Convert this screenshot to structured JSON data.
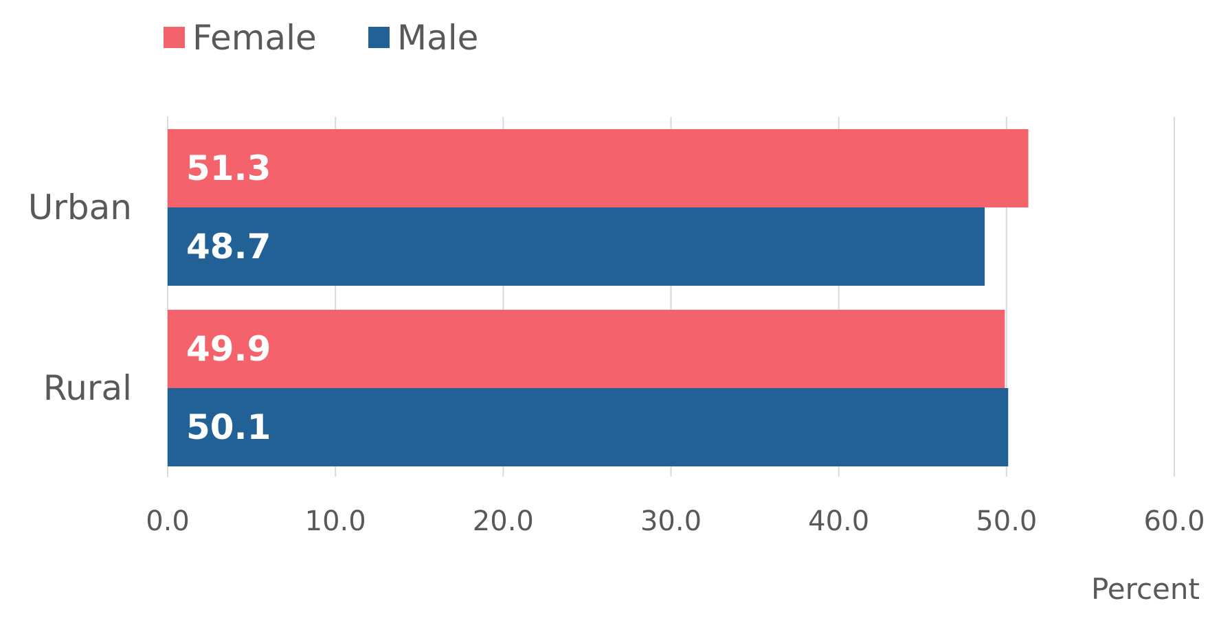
{
  "chart_data": {
    "type": "bar",
    "orientation": "horizontal",
    "categories": [
      "Urban",
      "Rural"
    ],
    "series": [
      {
        "name": "Female",
        "values": [
          51.3,
          49.9
        ],
        "color": "#F4626B"
      },
      {
        "name": "Male",
        "values": [
          48.7,
          50.1
        ],
        "color": "#226195"
      }
    ],
    "data_labels": [
      [
        "51.3",
        "49.9"
      ],
      [
        "48.7",
        "50.1"
      ]
    ],
    "xlabel": "Percent",
    "ylabel": "",
    "xlim": [
      0,
      60
    ],
    "x_ticks": [
      0,
      10,
      20,
      30,
      40,
      50,
      60
    ],
    "x_tick_labels": [
      "0.0",
      "10.0",
      "20.0",
      "30.0",
      "40.0",
      "50.0",
      "60.0"
    ],
    "grid": true,
    "legend_position": "top-left",
    "colors": {
      "gridline": "#D9D9D9",
      "tick_label": "#595959",
      "data_label": "#FFFFFF"
    }
  }
}
